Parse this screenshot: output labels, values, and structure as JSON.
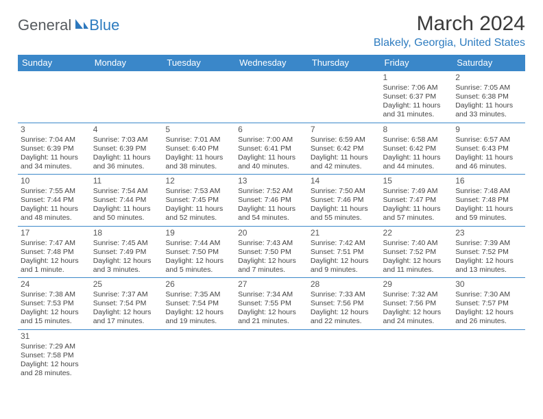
{
  "logo": {
    "text1": "General",
    "text2": "Blue",
    "icon_color": "#2d78bd"
  },
  "title": "March 2024",
  "location": "Blakely, Georgia, United States",
  "colors": {
    "header_bg": "#3a87c9",
    "header_text": "#ffffff",
    "border": "#3a87c9",
    "accent": "#2c7bbf",
    "body_text": "#444444"
  },
  "weekdays": [
    "Sunday",
    "Monday",
    "Tuesday",
    "Wednesday",
    "Thursday",
    "Friday",
    "Saturday"
  ],
  "first_weekday_index": 5,
  "days": [
    {
      "n": 1,
      "sunrise": "7:06 AM",
      "sunset": "6:37 PM",
      "daylight": "11 hours and 31 minutes."
    },
    {
      "n": 2,
      "sunrise": "7:05 AM",
      "sunset": "6:38 PM",
      "daylight": "11 hours and 33 minutes."
    },
    {
      "n": 3,
      "sunrise": "7:04 AM",
      "sunset": "6:39 PM",
      "daylight": "11 hours and 34 minutes."
    },
    {
      "n": 4,
      "sunrise": "7:03 AM",
      "sunset": "6:39 PM",
      "daylight": "11 hours and 36 minutes."
    },
    {
      "n": 5,
      "sunrise": "7:01 AM",
      "sunset": "6:40 PM",
      "daylight": "11 hours and 38 minutes."
    },
    {
      "n": 6,
      "sunrise": "7:00 AM",
      "sunset": "6:41 PM",
      "daylight": "11 hours and 40 minutes."
    },
    {
      "n": 7,
      "sunrise": "6:59 AM",
      "sunset": "6:42 PM",
      "daylight": "11 hours and 42 minutes."
    },
    {
      "n": 8,
      "sunrise": "6:58 AM",
      "sunset": "6:42 PM",
      "daylight": "11 hours and 44 minutes."
    },
    {
      "n": 9,
      "sunrise": "6:57 AM",
      "sunset": "6:43 PM",
      "daylight": "11 hours and 46 minutes."
    },
    {
      "n": 10,
      "sunrise": "7:55 AM",
      "sunset": "7:44 PM",
      "daylight": "11 hours and 48 minutes."
    },
    {
      "n": 11,
      "sunrise": "7:54 AM",
      "sunset": "7:44 PM",
      "daylight": "11 hours and 50 minutes."
    },
    {
      "n": 12,
      "sunrise": "7:53 AM",
      "sunset": "7:45 PM",
      "daylight": "11 hours and 52 minutes."
    },
    {
      "n": 13,
      "sunrise": "7:52 AM",
      "sunset": "7:46 PM",
      "daylight": "11 hours and 54 minutes."
    },
    {
      "n": 14,
      "sunrise": "7:50 AM",
      "sunset": "7:46 PM",
      "daylight": "11 hours and 55 minutes."
    },
    {
      "n": 15,
      "sunrise": "7:49 AM",
      "sunset": "7:47 PM",
      "daylight": "11 hours and 57 minutes."
    },
    {
      "n": 16,
      "sunrise": "7:48 AM",
      "sunset": "7:48 PM",
      "daylight": "11 hours and 59 minutes."
    },
    {
      "n": 17,
      "sunrise": "7:47 AM",
      "sunset": "7:48 PM",
      "daylight": "12 hours and 1 minute."
    },
    {
      "n": 18,
      "sunrise": "7:45 AM",
      "sunset": "7:49 PM",
      "daylight": "12 hours and 3 minutes."
    },
    {
      "n": 19,
      "sunrise": "7:44 AM",
      "sunset": "7:50 PM",
      "daylight": "12 hours and 5 minutes."
    },
    {
      "n": 20,
      "sunrise": "7:43 AM",
      "sunset": "7:50 PM",
      "daylight": "12 hours and 7 minutes."
    },
    {
      "n": 21,
      "sunrise": "7:42 AM",
      "sunset": "7:51 PM",
      "daylight": "12 hours and 9 minutes."
    },
    {
      "n": 22,
      "sunrise": "7:40 AM",
      "sunset": "7:52 PM",
      "daylight": "12 hours and 11 minutes."
    },
    {
      "n": 23,
      "sunrise": "7:39 AM",
      "sunset": "7:52 PM",
      "daylight": "12 hours and 13 minutes."
    },
    {
      "n": 24,
      "sunrise": "7:38 AM",
      "sunset": "7:53 PM",
      "daylight": "12 hours and 15 minutes."
    },
    {
      "n": 25,
      "sunrise": "7:37 AM",
      "sunset": "7:54 PM",
      "daylight": "12 hours and 17 minutes."
    },
    {
      "n": 26,
      "sunrise": "7:35 AM",
      "sunset": "7:54 PM",
      "daylight": "12 hours and 19 minutes."
    },
    {
      "n": 27,
      "sunrise": "7:34 AM",
      "sunset": "7:55 PM",
      "daylight": "12 hours and 21 minutes."
    },
    {
      "n": 28,
      "sunrise": "7:33 AM",
      "sunset": "7:56 PM",
      "daylight": "12 hours and 22 minutes."
    },
    {
      "n": 29,
      "sunrise": "7:32 AM",
      "sunset": "7:56 PM",
      "daylight": "12 hours and 24 minutes."
    },
    {
      "n": 30,
      "sunrise": "7:30 AM",
      "sunset": "7:57 PM",
      "daylight": "12 hours and 26 minutes."
    },
    {
      "n": 31,
      "sunrise": "7:29 AM",
      "sunset": "7:58 PM",
      "daylight": "12 hours and 28 minutes."
    }
  ],
  "labels": {
    "sunrise": "Sunrise:",
    "sunset": "Sunset:",
    "daylight": "Daylight:"
  }
}
